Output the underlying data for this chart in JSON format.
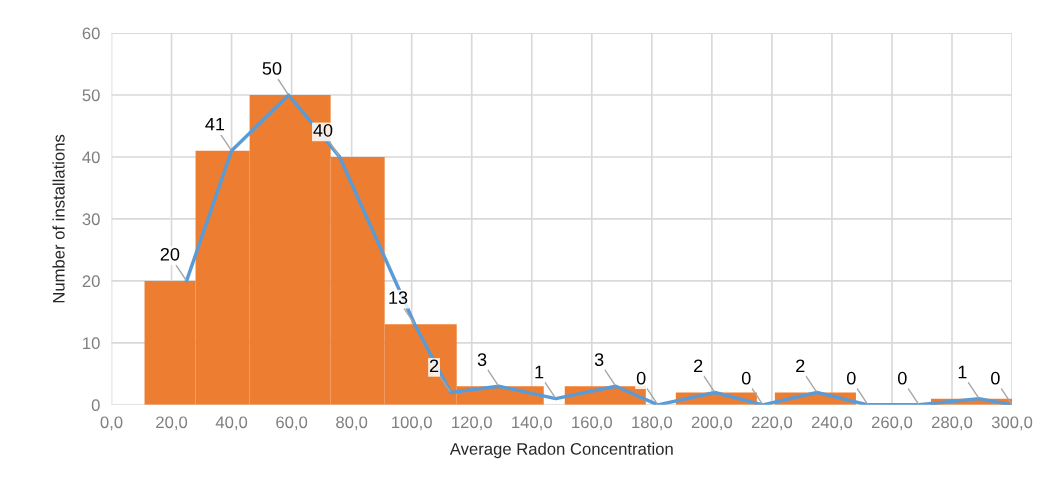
{
  "chart_data": {
    "type": "histogram",
    "xlabel": "Average Radon Concentration",
    "ylabel": "Number of installations",
    "series": [
      {
        "color": "#ed7d31",
        "bins": [
          11,
          28,
          46,
          73,
          91,
          115,
          144,
          151,
          178,
          188,
          215,
          221,
          248,
          273,
          300
        ],
        "values": [
          20,
          41,
          50,
          40,
          13,
          3,
          0,
          3,
          0,
          2,
          0,
          2,
          0,
          1
        ]
      },
      {
        "type": "line",
        "color": "#5b9bd5",
        "x": [
          25,
          40,
          59,
          76,
          101,
          113,
          129,
          148,
          168,
          182,
          201,
          217,
          235,
          252,
          269,
          289,
          300
        ],
        "values": [
          20,
          41,
          50,
          40,
          13,
          2,
          3,
          1,
          3,
          0,
          2,
          0,
          2,
          0,
          0,
          1,
          0
        ],
        "value_labels": [
          "20",
          "41",
          "50",
          "40",
          "13",
          "2",
          "3",
          "1",
          "3",
          "0",
          "2",
          "0",
          "2",
          "0",
          "0",
          "1",
          "0"
        ]
      }
    ],
    "xlim": [
      0,
      300
    ],
    "xticks": [
      {
        "value": 0,
        "label": "0,0"
      },
      {
        "value": 20,
        "label": "20,0"
      },
      {
        "value": 40,
        "label": "40,0"
      },
      {
        "value": 60,
        "label": "60,0"
      },
      {
        "value": 80,
        "label": "80,0"
      },
      {
        "value": 100,
        "label": "100,0"
      },
      {
        "value": 120,
        "label": "120,0"
      },
      {
        "value": 140,
        "label": "140,0"
      },
      {
        "value": 160,
        "label": "160,0"
      },
      {
        "value": 180,
        "label": "180,0"
      },
      {
        "value": 200,
        "label": "200,0"
      },
      {
        "value": 220,
        "label": "220,0"
      },
      {
        "value": 240,
        "label": "240,0"
      },
      {
        "value": 260,
        "label": "260,0"
      },
      {
        "value": 280,
        "label": "280,0"
      },
      {
        "value": 300,
        "label": "300,0"
      }
    ],
    "ylim": [
      0,
      60
    ],
    "yticks": [
      0,
      10,
      20,
      30,
      40,
      50,
      60
    ],
    "grid": true
  }
}
